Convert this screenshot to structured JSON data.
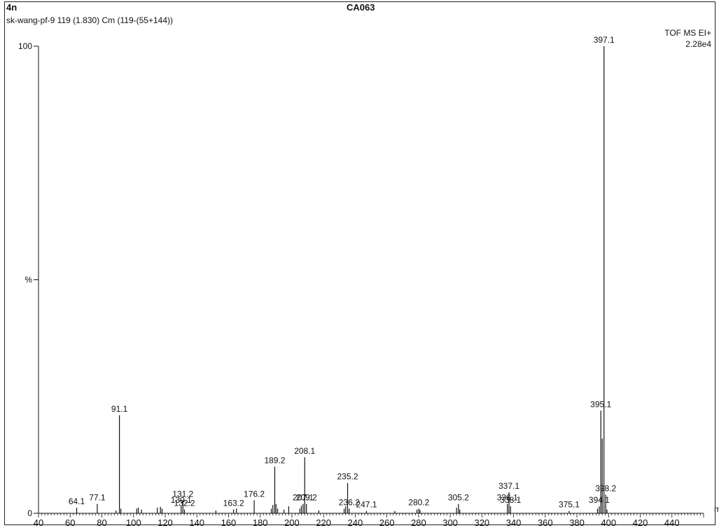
{
  "header": {
    "compound_id": "4n",
    "sample_name": "CA063",
    "scan_info": "sk-wang-pf-9 119 (1.830) Cm (119-(55+144))",
    "mode": "TOF MS EI+",
    "intensity": "2.28e4"
  },
  "chart_data": {
    "type": "bar",
    "xlabel": "m/z",
    "ylabel": "%",
    "xlim": [
      40,
      460
    ],
    "ylim": [
      0,
      100
    ],
    "x_ticks": [
      40,
      60,
      80,
      100,
      120,
      140,
      160,
      180,
      200,
      220,
      240,
      260,
      280,
      300,
      320,
      340,
      360,
      380,
      400,
      420,
      440
    ],
    "y_tick_labels": [
      {
        "value": 100,
        "label": "100"
      },
      {
        "value": 50,
        "label": "%"
      },
      {
        "value": 0,
        "label": "0"
      }
    ],
    "grid": false,
    "peaks": [
      {
        "mz": 64.1,
        "rel": 1.2,
        "label": "64.1"
      },
      {
        "mz": 77.1,
        "rel": 2.0,
        "label": "77.1"
      },
      {
        "mz": 89.0,
        "rel": 0.6
      },
      {
        "mz": 91.1,
        "rel": 21.0,
        "label": "91.1"
      },
      {
        "mz": 92.0,
        "rel": 1.0
      },
      {
        "mz": 102.0,
        "rel": 1.0
      },
      {
        "mz": 103.0,
        "rel": 1.2
      },
      {
        "mz": 105.0,
        "rel": 0.8
      },
      {
        "mz": 115.0,
        "rel": 1.2
      },
      {
        "mz": 117.0,
        "rel": 1.4
      },
      {
        "mz": 118.0,
        "rel": 1.0
      },
      {
        "mz": 130.1,
        "rel": 1.5,
        "label": "130.1"
      },
      {
        "mz": 131.2,
        "rel": 2.8,
        "label": "131.2"
      },
      {
        "mz": 132.2,
        "rel": 0.8,
        "label": "132.2"
      },
      {
        "mz": 152.0,
        "rel": 0.6
      },
      {
        "mz": 163.2,
        "rel": 0.8,
        "label": "163.2"
      },
      {
        "mz": 165.0,
        "rel": 1.0
      },
      {
        "mz": 176.2,
        "rel": 2.8,
        "label": "176.2"
      },
      {
        "mz": 187.0,
        "rel": 1.0
      },
      {
        "mz": 188.0,
        "rel": 1.8
      },
      {
        "mz": 189.2,
        "rel": 10.0,
        "label": "189.2"
      },
      {
        "mz": 190.0,
        "rel": 2.0
      },
      {
        "mz": 191.0,
        "rel": 1.0
      },
      {
        "mz": 195.0,
        "rel": 0.8
      },
      {
        "mz": 198.0,
        "rel": 1.5
      },
      {
        "mz": 205.0,
        "rel": 1.0
      },
      {
        "mz": 206.0,
        "rel": 1.6
      },
      {
        "mz": 207.1,
        "rel": 2.0,
        "label": "207.1"
      },
      {
        "mz": 208.1,
        "rel": 12.0,
        "label": "208.1"
      },
      {
        "mz": 209.2,
        "rel": 2.0,
        "label": "209.2"
      },
      {
        "mz": 217.0,
        "rel": 0.6
      },
      {
        "mz": 233.0,
        "rel": 1.0
      },
      {
        "mz": 234.0,
        "rel": 1.5
      },
      {
        "mz": 235.2,
        "rel": 6.5,
        "label": "235.2"
      },
      {
        "mz": 236.2,
        "rel": 1.0,
        "label": "236.2"
      },
      {
        "mz": 247.1,
        "rel": 0.5,
        "label": "247.1"
      },
      {
        "mz": 265.0,
        "rel": 0.5
      },
      {
        "mz": 279.0,
        "rel": 0.8
      },
      {
        "mz": 280.2,
        "rel": 1.0,
        "label": "280.2"
      },
      {
        "mz": 281.0,
        "rel": 0.7
      },
      {
        "mz": 304.0,
        "rel": 1.2
      },
      {
        "mz": 305.2,
        "rel": 2.0,
        "label": "305.2"
      },
      {
        "mz": 306.0,
        "rel": 0.8
      },
      {
        "mz": 336.1,
        "rel": 2.0,
        "label": "336.1"
      },
      {
        "mz": 337.1,
        "rel": 4.5,
        "label": "337.1"
      },
      {
        "mz": 338.1,
        "rel": 1.5,
        "label": "338.1"
      },
      {
        "mz": 375.1,
        "rel": 0.5,
        "label": "375.1"
      },
      {
        "mz": 393.0,
        "rel": 1.0
      },
      {
        "mz": 394.1,
        "rel": 1.5,
        "label": "394.1"
      },
      {
        "mz": 395.1,
        "rel": 22.0,
        "label": "395.1"
      },
      {
        "mz": 396.0,
        "rel": 16.0
      },
      {
        "mz": 397.1,
        "rel": 100.0,
        "label": "397.1"
      },
      {
        "mz": 398.2,
        "rel": 4.0,
        "label": "398.2"
      },
      {
        "mz": 399.0,
        "rel": 0.8
      }
    ]
  }
}
